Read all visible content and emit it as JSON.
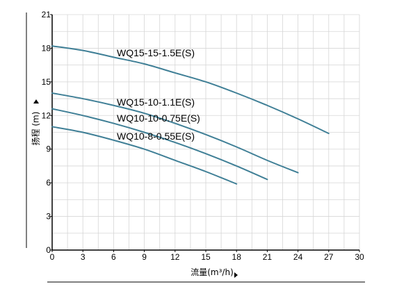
{
  "chart_data": {
    "type": "line",
    "xlabel": "流量(m³/h)",
    "ylabel": "扬程 (m)",
    "xlim": [
      0,
      30
    ],
    "ylim": [
      0,
      21
    ],
    "x_ticks": [
      0,
      3,
      6,
      9,
      12,
      15,
      18,
      21,
      24,
      27,
      30
    ],
    "y_ticks": [
      0,
      3,
      6,
      9,
      12,
      15,
      18,
      21
    ],
    "grid": true,
    "line_color": "#3f7f96",
    "series": [
      {
        "name": "WQ15-15-1.5E(S)",
        "points": [
          [
            0,
            18.2
          ],
          [
            3,
            17.8
          ],
          [
            6,
            17.2
          ],
          [
            9,
            16.6
          ],
          [
            12,
            15.8
          ],
          [
            15,
            15.0
          ],
          [
            18,
            14.0
          ],
          [
            21,
            12.9
          ],
          [
            24,
            11.7
          ],
          [
            27,
            10.4
          ]
        ]
      },
      {
        "name": "WQ15-10-1.1E(S)",
        "points": [
          [
            0,
            14.0
          ],
          [
            3,
            13.5
          ],
          [
            6,
            12.9
          ],
          [
            9,
            12.2
          ],
          [
            12,
            11.3
          ],
          [
            15,
            10.3
          ],
          [
            18,
            9.2
          ],
          [
            21,
            8.0
          ],
          [
            24,
            6.9
          ]
        ]
      },
      {
        "name": "WQ10-10-0.75E(S)",
        "points": [
          [
            0,
            12.6
          ],
          [
            3,
            12.0
          ],
          [
            6,
            11.3
          ],
          [
            9,
            10.5
          ],
          [
            12,
            9.6
          ],
          [
            15,
            8.6
          ],
          [
            18,
            7.5
          ],
          [
            21,
            6.3
          ]
        ]
      },
      {
        "name": "WQ10-8-0.55E(S)",
        "points": [
          [
            0,
            11.0
          ],
          [
            3,
            10.5
          ],
          [
            6,
            9.8
          ],
          [
            9,
            9.0
          ],
          [
            12,
            8.0
          ],
          [
            15,
            7.0
          ],
          [
            18,
            5.9
          ]
        ]
      }
    ]
  }
}
